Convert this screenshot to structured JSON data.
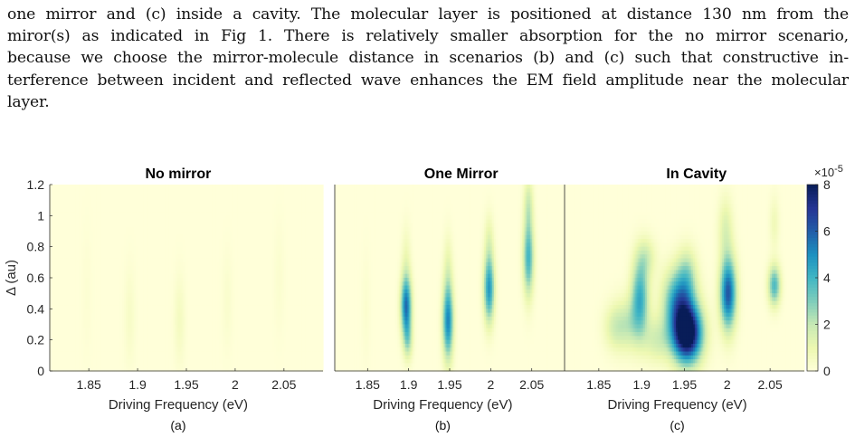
{
  "paragraph": {
    "lines": [
      "one mirror and (c) inside a cavity. The molecular layer is positioned at distance 130 nm from the",
      "miror(s) as indicated in Fig 1. There is relatively smaller absorption for the no mirror scenario,",
      "because we choose the mirror-molecule distance in scenarios (b) and (c) such that constructive in-",
      "terference between incident and reflected wave enhances the EM field amplitude near the molecular",
      "layer."
    ]
  },
  "chart_data": [
    {
      "type": "heatmap",
      "title": "No mirror",
      "panel_label": "(a)",
      "xlabel": "Driving Frequency (eV)",
      "ylabel": "Δ (au)",
      "x_ticks": [
        "1.85",
        "1.9",
        "1.95",
        "2",
        "2.05"
      ],
      "x_tick_values": [
        1.85,
        1.9,
        1.95,
        2.0,
        2.05
      ],
      "y_ticks": [
        "0",
        "0.2",
        "0.4",
        "0.6",
        "0.8",
        "1",
        "1.2"
      ],
      "y_tick_values": [
        0,
        0.2,
        0.4,
        0.6,
        0.8,
        1.0,
        1.2
      ],
      "xlim": [
        1.81,
        2.09
      ],
      "ylim": [
        0,
        1.2
      ],
      "blobs": [
        {
          "x": 1.892,
          "y": 0.35,
          "sx": 0.004,
          "sy": 0.22,
          "v": 0.45
        },
        {
          "x": 1.943,
          "y": 0.33,
          "sx": 0.004,
          "sy": 0.2,
          "v": 0.6
        },
        {
          "x": 1.992,
          "y": 0.45,
          "sx": 0.004,
          "sy": 0.22,
          "v": 0.3
        },
        {
          "x": 2.045,
          "y": 0.6,
          "sx": 0.004,
          "sy": 0.25,
          "v": 0.25
        },
        {
          "x": 1.848,
          "y": 0.5,
          "sx": 0.004,
          "sy": 0.3,
          "v": 0.15
        }
      ]
    },
    {
      "type": "heatmap",
      "title": "One Mirror",
      "panel_label": "(b)",
      "xlabel": "Driving Frequency (eV)",
      "ylabel": "",
      "x_ticks": [
        "1.85",
        "1.9",
        "1.95",
        "2",
        "2.05"
      ],
      "x_tick_values": [
        1.85,
        1.9,
        1.95,
        2.0,
        2.05
      ],
      "xlim": [
        1.81,
        2.09
      ],
      "ylim": [
        0,
        1.2
      ],
      "blobs": [
        {
          "x": 1.897,
          "y": 0.42,
          "sx": 0.0045,
          "sy": 0.13,
          "v": 5.6
        },
        {
          "x": 1.899,
          "y": 0.2,
          "sx": 0.004,
          "sy": 0.09,
          "v": 2.2
        },
        {
          "x": 1.897,
          "y": 0.72,
          "sx": 0.004,
          "sy": 0.15,
          "v": 0.8
        },
        {
          "x": 1.948,
          "y": 0.32,
          "sx": 0.0045,
          "sy": 0.17,
          "v": 5.2
        },
        {
          "x": 1.948,
          "y": 0.68,
          "sx": 0.004,
          "sy": 0.15,
          "v": 0.9
        },
        {
          "x": 1.998,
          "y": 0.53,
          "sx": 0.0045,
          "sy": 0.15,
          "v": 4.8
        },
        {
          "x": 1.998,
          "y": 0.85,
          "sx": 0.004,
          "sy": 0.12,
          "v": 1.0
        },
        {
          "x": 2.046,
          "y": 0.73,
          "sx": 0.0045,
          "sy": 0.17,
          "v": 4.0
        },
        {
          "x": 2.046,
          "y": 1.08,
          "sx": 0.004,
          "sy": 0.12,
          "v": 1.6
        },
        {
          "x": 1.848,
          "y": 0.4,
          "sx": 0.004,
          "sy": 0.25,
          "v": 0.25
        }
      ]
    },
    {
      "type": "heatmap",
      "title": "In Cavity",
      "panel_label": "(c)",
      "xlabel": "Driving Frequency (eV)",
      "ylabel": "",
      "x_ticks": [
        "1.85",
        "1.9",
        "1.95",
        "2",
        "2.05"
      ],
      "x_tick_values": [
        1.85,
        1.9,
        1.95,
        2.0,
        2.05
      ],
      "xlim": [
        1.81,
        2.09
      ],
      "ylim": [
        0,
        1.2
      ],
      "colorbar": {
        "ticks": [
          "0",
          "2",
          "4",
          "6",
          "8"
        ],
        "tick_values": [
          0,
          2,
          4,
          6,
          8
        ],
        "range": [
          0,
          8
        ],
        "exponent_label": "×10",
        "exponent": "-5"
      },
      "blobs": [
        {
          "x": 1.953,
          "y": 0.24,
          "sx": 0.012,
          "sy": 0.13,
          "v": 9.5
        },
        {
          "x": 1.943,
          "y": 0.45,
          "sx": 0.012,
          "sy": 0.14,
          "v": 4.5
        },
        {
          "x": 1.953,
          "y": 0.62,
          "sx": 0.008,
          "sy": 0.12,
          "v": 2.0
        },
        {
          "x": 1.898,
          "y": 0.48,
          "sx": 0.007,
          "sy": 0.16,
          "v": 4.0
        },
        {
          "x": 1.905,
          "y": 0.73,
          "sx": 0.008,
          "sy": 0.09,
          "v": 1.5
        },
        {
          "x": 1.885,
          "y": 0.3,
          "sx": 0.012,
          "sy": 0.12,
          "v": 1.8
        },
        {
          "x": 1.918,
          "y": 0.2,
          "sx": 0.012,
          "sy": 0.1,
          "v": 1.6
        },
        {
          "x": 2.001,
          "y": 0.5,
          "sx": 0.0065,
          "sy": 0.16,
          "v": 6.2
        },
        {
          "x": 1.998,
          "y": 0.92,
          "sx": 0.006,
          "sy": 0.14,
          "v": 1.4
        },
        {
          "x": 2.055,
          "y": 0.55,
          "sx": 0.005,
          "sy": 0.09,
          "v": 3.8
        },
        {
          "x": 2.055,
          "y": 0.95,
          "sx": 0.004,
          "sy": 0.12,
          "v": 0.8
        },
        {
          "x": 1.868,
          "y": 0.28,
          "sx": 0.009,
          "sy": 0.1,
          "v": 1.2
        }
      ]
    }
  ],
  "colors": {
    "colormap": [
      "#ffffd9",
      "#edf8b1",
      "#c7e9b4",
      "#7fcdbb",
      "#41b6c4",
      "#1d91c0",
      "#225ea8",
      "#253494",
      "#081d58"
    ],
    "axis": "#262626",
    "text": "#111111"
  }
}
